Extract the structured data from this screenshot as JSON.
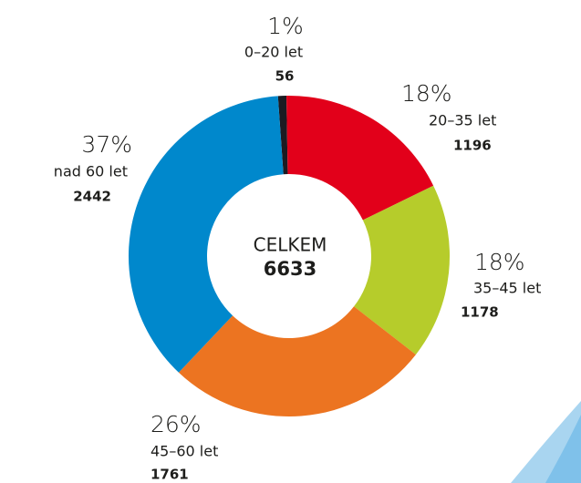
{
  "chart_data": {
    "type": "donut",
    "categories": [
      "0–20 let",
      "20–35 let",
      "35–45 let",
      "45–60 let",
      "nad 60 let"
    ],
    "values": [
      56,
      1196,
      1178,
      1761,
      2442
    ],
    "percent_labels": [
      "1%",
      "18%",
      "18%",
      "26%",
      "37%"
    ],
    "colors": [
      "#1c1b22",
      "#e2001a",
      "#b6cc2b",
      "#ec7421",
      "#0088cc"
    ],
    "total_label": "CELKEM",
    "total": 6633
  }
}
